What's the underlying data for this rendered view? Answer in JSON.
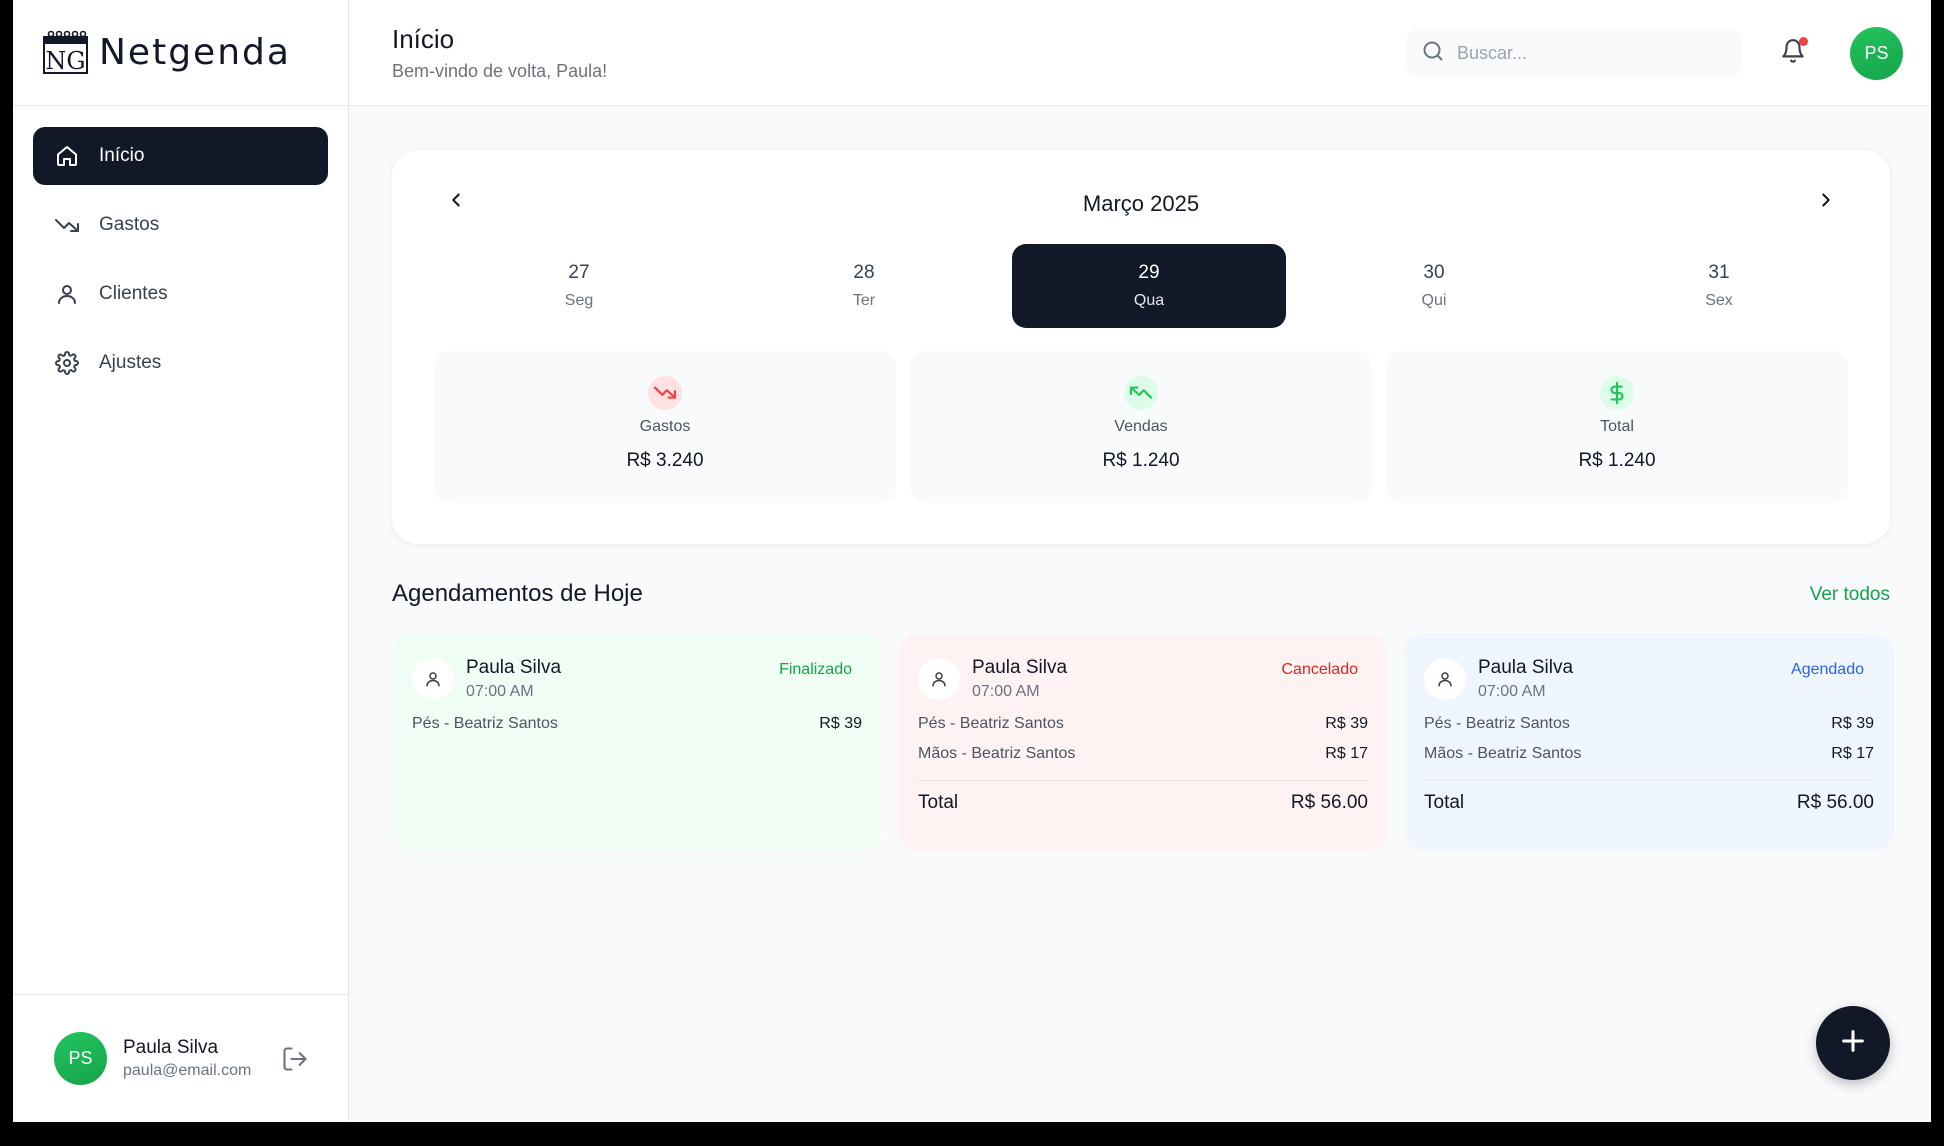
{
  "brand": {
    "name": "Netgenda",
    "mark_text": "NG"
  },
  "nav": [
    {
      "label": "Início",
      "icon": "home-icon",
      "active": true
    },
    {
      "label": "Gastos",
      "icon": "trending-down-icon",
      "active": false
    },
    {
      "label": "Clientes",
      "icon": "user-icon",
      "active": false
    },
    {
      "label": "Ajustes",
      "icon": "gear-icon",
      "active": false
    }
  ],
  "user": {
    "initials": "PS",
    "name": "Paula Silva",
    "email": "paula@email.com"
  },
  "header": {
    "title": "Início",
    "subtitle": "Bem-vindo de volta, Paula!",
    "search_placeholder": "Buscar..."
  },
  "calendar": {
    "month": "Março 2025",
    "days": [
      {
        "num": "27",
        "weekday": "Seg",
        "active": false
      },
      {
        "num": "28",
        "weekday": "Ter",
        "active": false
      },
      {
        "num": "29",
        "weekday": "Qua",
        "active": true
      },
      {
        "num": "30",
        "weekday": "Qui",
        "active": false
      },
      {
        "num": "31",
        "weekday": "Sex",
        "active": false
      }
    ]
  },
  "stats": [
    {
      "label": "Gastos",
      "value": "R$ 3.240",
      "icon": "trending-down-icon",
      "color": "#ef4444"
    },
    {
      "label": "Vendas",
      "value": "R$ 1.240",
      "icon": "trending-up-icon",
      "color": "#22c55e"
    },
    {
      "label": "Total",
      "value": "R$ 1.240",
      "icon": "dollar-icon",
      "color": "#22c55e"
    }
  ],
  "appointments": {
    "title": "Agendamentos de Hoje",
    "see_all": "Ver todos",
    "items": [
      {
        "client": "Paula Silva",
        "time": "07:00 AM",
        "status": "Finalizado",
        "tone": "green",
        "services": [
          {
            "name": "Pés - Beatriz Santos",
            "price": "R$ 39"
          }
        ]
      },
      {
        "client": "Paula Silva",
        "time": "07:00 AM",
        "status": "Cancelado",
        "tone": "red",
        "services": [
          {
            "name": "Pés - Beatriz Santos",
            "price": "R$ 39"
          },
          {
            "name": "Mãos - Beatriz Santos",
            "price": "R$ 17"
          }
        ],
        "total_label": "Total",
        "total": "R$ 56.00"
      },
      {
        "client": "Paula Silva",
        "time": "07:00 AM",
        "status": "Agendado",
        "tone": "blue",
        "services": [
          {
            "name": "Pés - Beatriz Santos",
            "price": "R$ 39"
          },
          {
            "name": "Mãos - Beatriz Santos",
            "price": "R$ 17"
          }
        ],
        "total_label": "Total",
        "total": "R$ 56.00"
      }
    ]
  },
  "colors": {
    "primary": "#111827",
    "accent_green": "#16a34a",
    "danger": "#dc2626",
    "info": "#2563eb"
  }
}
